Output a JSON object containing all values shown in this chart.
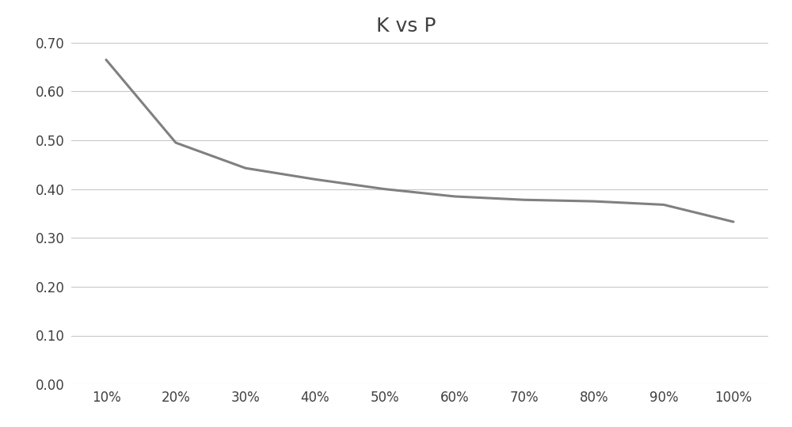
{
  "title": "K vs P",
  "x_labels": [
    "10%",
    "20%",
    "30%",
    "40%",
    "50%",
    "60%",
    "70%",
    "80%",
    "90%",
    "100%"
  ],
  "x_values": [
    0.1,
    0.2,
    0.3,
    0.4,
    0.5,
    0.6,
    0.7,
    0.8,
    0.9,
    1.0
  ],
  "y_values": [
    0.665,
    0.495,
    0.443,
    0.42,
    0.4,
    0.385,
    0.378,
    0.375,
    0.368,
    0.333
  ],
  "ylim": [
    0.0,
    0.7
  ],
  "yticks": [
    0.0,
    0.1,
    0.2,
    0.3,
    0.4,
    0.5,
    0.6,
    0.7
  ],
  "line_color": "#808080",
  "line_width": 2.2,
  "title_fontsize": 18,
  "tick_fontsize": 12,
  "background_color": "#ffffff",
  "grid_color": "#c8c8c8",
  "title_color": "#404040",
  "tick_color": "#404040"
}
